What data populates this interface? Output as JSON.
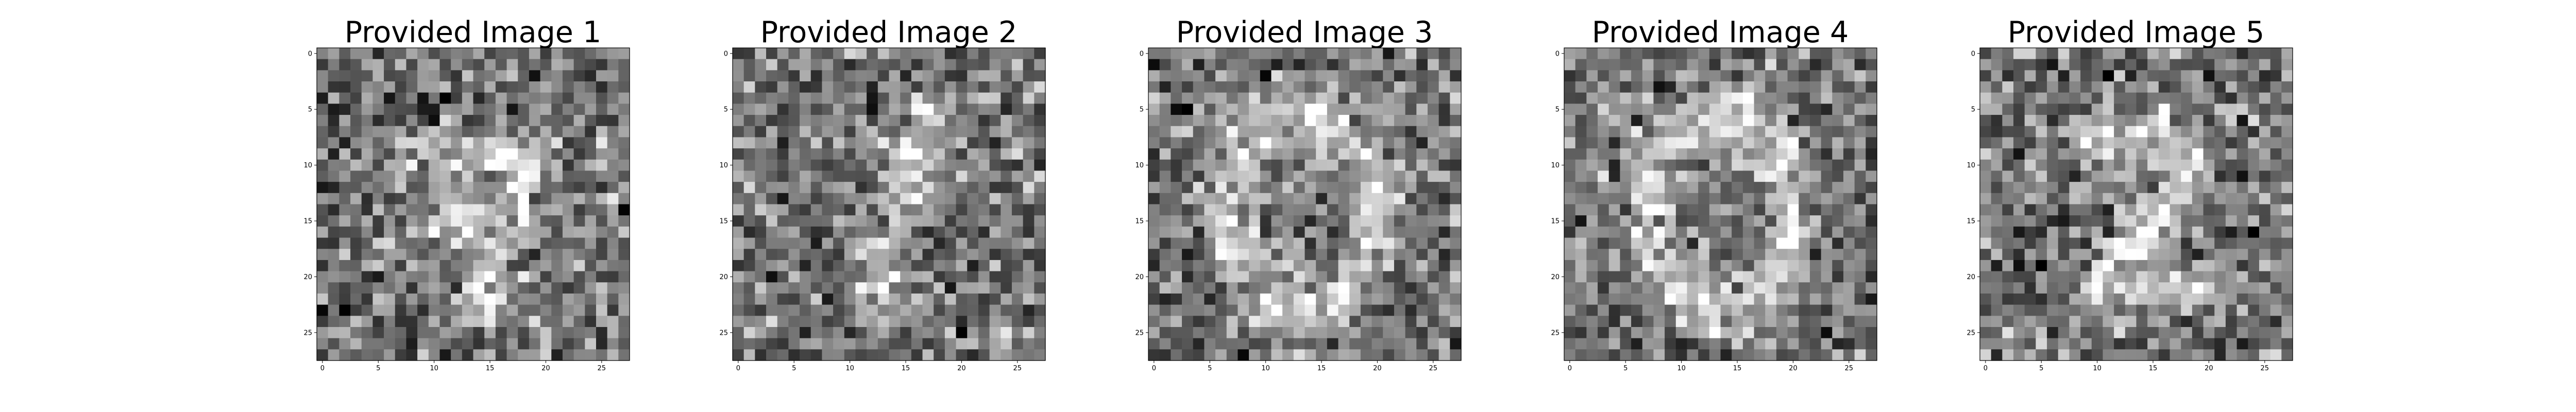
{
  "chart_data": [
    {
      "type": "heatmap",
      "title": "Provided Image 1",
      "colormap": "gray",
      "grid_size": [
        28,
        28
      ],
      "xlim": [
        -0.5,
        27.5
      ],
      "ylim": [
        27.5,
        -0.5
      ],
      "xticks": [
        0,
        5,
        10,
        15,
        20,
        25
      ],
      "yticks": [
        0,
        5,
        10,
        15,
        20,
        25
      ],
      "xtick_labels": [
        "0",
        "5",
        "10",
        "15",
        "20",
        "25"
      ],
      "ytick_labels": [
        "0",
        "5",
        "10",
        "15",
        "20",
        "25"
      ],
      "pattern": "noisy-seven",
      "noise_seed": 11
    },
    {
      "type": "heatmap",
      "title": "Provided Image 2",
      "colormap": "gray",
      "grid_size": [
        28,
        28
      ],
      "xlim": [
        -0.5,
        27.5
      ],
      "ylim": [
        27.5,
        -0.5
      ],
      "xticks": [
        0,
        5,
        10,
        15,
        20,
        25
      ],
      "yticks": [
        0,
        5,
        10,
        15,
        20,
        25
      ],
      "xtick_labels": [
        "0",
        "5",
        "10",
        "15",
        "20",
        "25"
      ],
      "ytick_labels": [
        "0",
        "5",
        "10",
        "15",
        "20",
        "25"
      ],
      "pattern": "noisy-one",
      "noise_seed": 23
    },
    {
      "type": "heatmap",
      "title": "Provided Image 3",
      "colormap": "gray",
      "grid_size": [
        28,
        28
      ],
      "xlim": [
        -0.5,
        27.5
      ],
      "ylim": [
        27.5,
        -0.5
      ],
      "xticks": [
        0,
        5,
        10,
        15,
        20,
        25
      ],
      "yticks": [
        0,
        5,
        10,
        15,
        20,
        25
      ],
      "xtick_labels": [
        "0",
        "5",
        "10",
        "15",
        "20",
        "25"
      ],
      "ytick_labels": [
        "0",
        "5",
        "10",
        "15",
        "20",
        "25"
      ],
      "pattern": "noisy-zero",
      "noise_seed": 37
    },
    {
      "type": "heatmap",
      "title": "Provided Image 4",
      "colormap": "gray",
      "grid_size": [
        28,
        28
      ],
      "xlim": [
        -0.5,
        27.5
      ],
      "ylim": [
        27.5,
        -0.5
      ],
      "xticks": [
        0,
        5,
        10,
        15,
        20,
        25
      ],
      "yticks": [
        0,
        5,
        10,
        15,
        20,
        25
      ],
      "xtick_labels": [
        "0",
        "5",
        "10",
        "15",
        "20",
        "25"
      ],
      "ytick_labels": [
        "0",
        "5",
        "10",
        "15",
        "20",
        "25"
      ],
      "pattern": "noisy-zero",
      "noise_seed": 41
    },
    {
      "type": "heatmap",
      "title": "Provided Image 5",
      "colormap": "gray",
      "grid_size": [
        28,
        28
      ],
      "xlim": [
        -0.5,
        27.5
      ],
      "ylim": [
        27.5,
        -0.5
      ],
      "xticks": [
        0,
        5,
        10,
        15,
        20,
        25
      ],
      "yticks": [
        0,
        5,
        10,
        15,
        20,
        25
      ],
      "xtick_labels": [
        "0",
        "5",
        "10",
        "15",
        "20",
        "25"
      ],
      "ytick_labels": [
        "0",
        "5",
        "10",
        "15",
        "20",
        "25"
      ],
      "pattern": "noisy-two",
      "noise_seed": 53
    }
  ]
}
